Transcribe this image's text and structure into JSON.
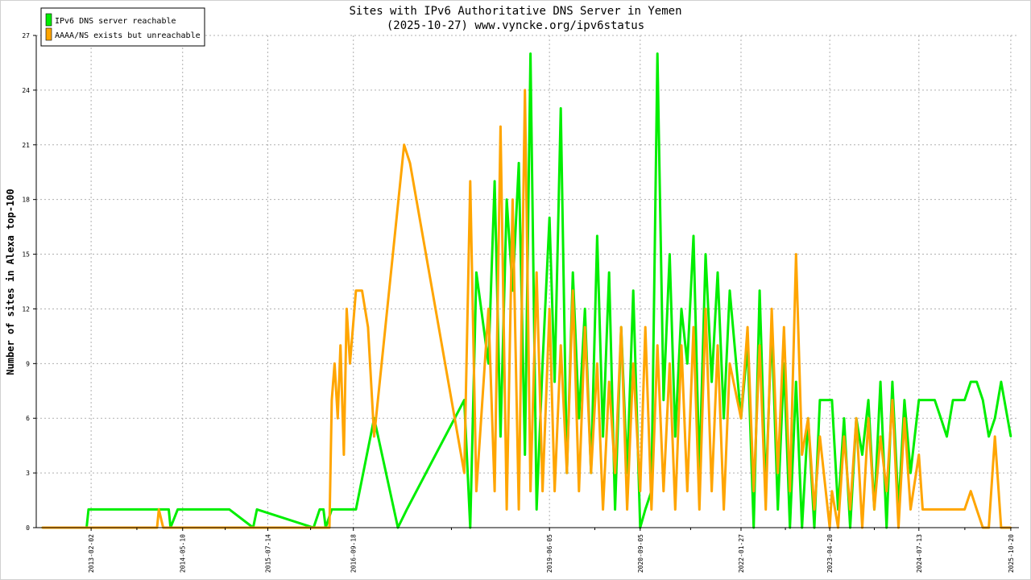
{
  "chart_data": {
    "type": "line",
    "title": "Sites with IPv6 Authoritative DNS Server in Yemen",
    "subtitle": "(2025-10-27) www.vyncke.org/ipv6status",
    "xlabel": "",
    "ylabel": "Number of sites in Alexa top-100",
    "ylim": [
      0,
      27
    ],
    "yticks": [
      0,
      3,
      6,
      9,
      12,
      15,
      18,
      21,
      24,
      27
    ],
    "xlim": [
      "2012-05-01",
      "2025-11-30"
    ],
    "xtick_labels": [
      "2013-02-02",
      "2014-05-10",
      "2015-07-14",
      "2016-09-18",
      "2019-06-05",
      "2020-09-05",
      "2022-01-27",
      "2023-04-20",
      "2024-07-13",
      "2025-10-20"
    ],
    "grid": true,
    "legend_position": "top-left",
    "series": [
      {
        "name": "IPv6 DNS server reachable",
        "color": "#00ee00",
        "x": [
          "2012-06-01",
          "2013-01-10",
          "2013-01-20",
          "2014-03-01",
          "2014-03-10",
          "2014-04-15",
          "2014-04-25",
          "2015-01-01",
          "2015-05-01",
          "2015-05-20",
          "2016-03-01",
          "2016-04-01",
          "2016-04-20",
          "2016-05-01",
          "2016-06-01",
          "2016-07-01",
          "2016-10-01",
          "2017-01-01",
          "2017-05-01",
          "2017-06-15",
          "2018-04-01",
          "2018-05-01",
          "2018-06-01",
          "2018-08-01",
          "2018-09-01",
          "2018-10-01",
          "2018-11-01",
          "2018-12-01",
          "2019-01-01",
          "2019-02-01",
          "2019-03-01",
          "2019-04-01",
          "2019-05-01",
          "2019-06-05",
          "2019-07-01",
          "2019-08-01",
          "2019-09-01",
          "2019-10-01",
          "2019-11-01",
          "2019-12-01",
          "2020-01-01",
          "2020-02-01",
          "2020-03-01",
          "2020-04-01",
          "2020-05-01",
          "2020-06-01",
          "2020-07-01",
          "2020-08-01",
          "2020-09-05",
          "2020-10-01",
          "2020-11-01",
          "2020-12-01",
          "2021-01-01",
          "2021-02-01",
          "2021-03-01",
          "2021-04-01",
          "2021-05-01",
          "2021-06-01",
          "2021-07-01",
          "2021-08-01",
          "2021-09-01",
          "2021-10-01",
          "2021-11-01",
          "2021-12-01",
          "2022-01-27",
          "2022-03-01",
          "2022-04-01",
          "2022-05-01",
          "2022-06-01",
          "2022-07-01",
          "2022-08-01",
          "2022-09-01",
          "2022-10-01",
          "2022-11-01",
          "2022-12-01",
          "2023-01-01",
          "2023-02-01",
          "2023-03-01",
          "2023-04-20",
          "2023-05-01",
          "2023-06-01",
          "2023-07-01",
          "2023-08-01",
          "2023-09-01",
          "2023-10-01",
          "2023-11-01",
          "2023-12-01",
          "2024-01-01",
          "2024-02-01",
          "2024-03-01",
          "2024-04-01",
          "2024-05-01",
          "2024-06-01",
          "2024-07-13",
          "2024-08-01",
          "2024-09-01",
          "2024-10-01",
          "2024-11-01",
          "2024-12-01",
          "2025-01-01",
          "2025-02-01",
          "2025-03-01",
          "2025-04-01",
          "2025-05-01",
          "2025-06-01",
          "2025-07-01",
          "2025-08-01",
          "2025-09-01",
          "2025-10-20"
        ],
        "values": [
          0,
          0,
          1,
          1,
          0,
          1,
          1,
          1,
          0,
          1,
          0,
          1,
          1,
          0,
          1,
          1,
          1,
          6,
          0,
          1,
          7,
          0,
          14,
          9,
          19,
          5,
          18,
          13,
          20,
          4,
          26,
          1,
          9,
          17,
          8,
          23,
          3,
          14,
          6,
          12,
          3,
          16,
          5,
          14,
          1,
          11,
          3,
          13,
          0,
          1,
          2,
          26,
          7,
          15,
          5,
          12,
          9,
          16,
          3,
          15,
          8,
          14,
          6,
          13,
          6,
          10,
          0,
          13,
          2,
          11,
          1,
          9,
          0,
          8,
          0,
          6,
          0,
          7,
          7,
          7,
          1,
          6,
          0,
          6,
          4,
          7,
          1,
          8,
          0,
          8,
          1,
          7,
          3,
          7,
          7,
          7,
          7,
          6,
          5,
          7,
          7,
          7,
          8,
          8,
          7,
          5,
          6,
          8,
          5
        ]
      },
      {
        "name": "AAAA/NS exists but unreachable",
        "color": "#ffa500",
        "x": [
          "2012-06-01",
          "2014-01-01",
          "2014-01-10",
          "2014-02-01",
          "2016-05-20",
          "2016-06-01",
          "2016-06-15",
          "2016-07-01",
          "2016-07-15",
          "2016-08-01",
          "2016-08-15",
          "2016-09-01",
          "2016-10-01",
          "2016-11-01",
          "2016-12-01",
          "2017-01-01",
          "2017-06-01",
          "2017-07-01",
          "2018-04-01",
          "2018-05-01",
          "2018-06-01",
          "2018-08-01",
          "2018-09-01",
          "2018-10-01",
          "2018-11-01",
          "2018-12-01",
          "2019-01-01",
          "2019-02-01",
          "2019-03-01",
          "2019-04-01",
          "2019-05-01",
          "2019-06-05",
          "2019-07-01",
          "2019-08-01",
          "2019-09-01",
          "2019-10-01",
          "2019-11-01",
          "2019-12-01",
          "2020-01-01",
          "2020-02-01",
          "2020-03-01",
          "2020-04-01",
          "2020-05-01",
          "2020-06-01",
          "2020-07-01",
          "2020-08-01",
          "2020-09-05",
          "2020-10-01",
          "2020-11-01",
          "2020-12-01",
          "2021-01-01",
          "2021-02-01",
          "2021-03-01",
          "2021-04-01",
          "2021-05-01",
          "2021-06-01",
          "2021-07-01",
          "2021-08-01",
          "2021-09-01",
          "2021-10-01",
          "2021-11-01",
          "2021-12-01",
          "2022-01-27",
          "2022-03-01",
          "2022-04-01",
          "2022-05-01",
          "2022-06-01",
          "2022-07-01",
          "2022-08-01",
          "2022-09-01",
          "2022-10-01",
          "2022-11-01",
          "2022-12-01",
          "2023-01-01",
          "2023-02-01",
          "2023-03-01",
          "2023-04-20",
          "2023-05-01",
          "2023-06-01",
          "2023-07-01",
          "2023-08-01",
          "2023-09-01",
          "2023-10-01",
          "2023-11-01",
          "2023-12-01",
          "2024-01-01",
          "2024-02-01",
          "2024-03-01",
          "2024-04-01",
          "2024-05-01",
          "2024-06-01",
          "2024-07-13",
          "2024-08-01",
          "2024-09-01",
          "2024-10-01",
          "2024-11-01",
          "2024-12-01",
          "2025-01-01",
          "2025-02-01",
          "2025-03-01",
          "2025-04-01",
          "2025-05-01",
          "2025-06-01",
          "2025-07-01",
          "2025-08-01",
          "2025-09-01",
          "2025-10-20"
        ],
        "values": [
          0,
          0,
          1,
          0,
          0,
          7,
          9,
          6,
          10,
          4,
          12,
          9,
          13,
          13,
          11,
          5,
          21,
          20,
          3,
          19,
          2,
          12,
          2,
          22,
          1,
          18,
          1,
          24,
          2,
          14,
          2,
          12,
          2,
          10,
          3,
          13,
          2,
          11,
          3,
          9,
          1,
          8,
          3,
          11,
          1,
          9,
          2,
          11,
          1,
          10,
          2,
          9,
          1,
          10,
          2,
          11,
          1,
          12,
          2,
          10,
          1,
          9,
          6,
          11,
          2,
          10,
          1,
          12,
          3,
          11,
          2,
          15,
          4,
          6,
          1,
          5,
          0,
          2,
          0,
          5,
          1,
          6,
          0,
          6,
          1,
          5,
          2,
          7,
          0,
          6,
          1,
          4,
          1,
          1,
          1,
          1,
          1,
          1,
          1,
          1,
          2,
          1,
          0,
          0,
          5,
          0,
          0
        ]
      }
    ]
  }
}
